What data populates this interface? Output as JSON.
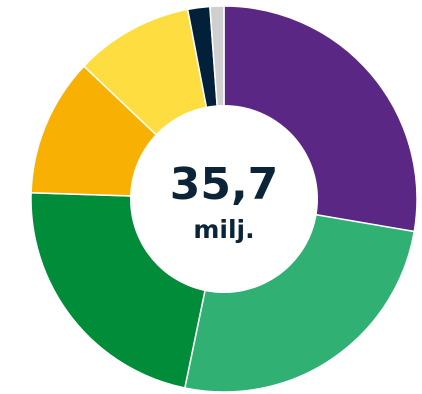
{
  "chart_data": {
    "type": "pie",
    "values": [
      28.5,
      26.3,
      22.9,
      11.9,
      10.2,
      1.9,
      1.2
    ],
    "colors": [
      "#5a2884",
      "#31b073",
      "#008c39",
      "#f8b103",
      "#fddd3f",
      "#03203a",
      "#cfcfcf"
    ],
    "center": {
      "value": "35,7",
      "unit": "milj."
    }
  }
}
